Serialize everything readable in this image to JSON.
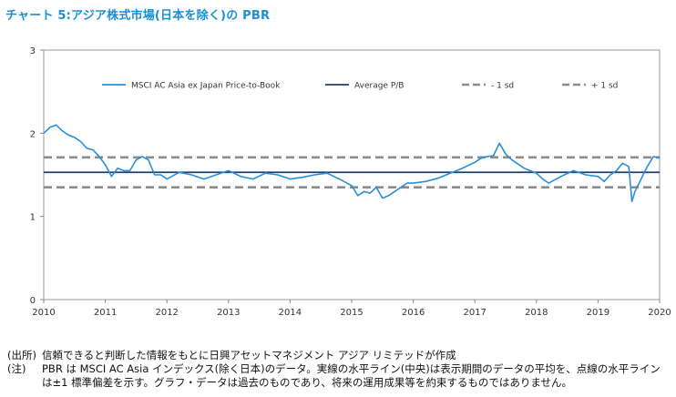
{
  "title": "チャート 5:アジア株式市場(日本を除く)の PBR",
  "chart_data": {
    "type": "line",
    "title": "チャート 5:アジア株式市場(日本を除く)の PBR",
    "xlim": [
      2010,
      2020
    ],
    "ylim": [
      0,
      3
    ],
    "x_ticks": [
      "2010",
      "2011",
      "2012",
      "2013",
      "2014",
      "2015",
      "2016",
      "2017",
      "2018",
      "2019",
      "2020"
    ],
    "y_ticks": [
      "0",
      "1",
      "2",
      "3"
    ],
    "grid": false,
    "legend_position": "top",
    "series": [
      {
        "name": "MSCI AC Asia ex Japan Price-to-Book",
        "color": "#2b8fd6",
        "style": "solid",
        "x": [
          2010.0,
          2010.1,
          2010.2,
          2010.3,
          2010.4,
          2010.5,
          2010.6,
          2010.7,
          2010.8,
          2010.9,
          2011.0,
          2011.1,
          2011.2,
          2011.3,
          2011.4,
          2011.5,
          2011.6,
          2011.7,
          2011.8,
          2011.9,
          2012.0,
          2012.2,
          2012.4,
          2012.6,
          2012.8,
          2013.0,
          2013.2,
          2013.4,
          2013.6,
          2013.8,
          2014.0,
          2014.2,
          2014.4,
          2014.6,
          2014.8,
          2015.0,
          2015.1,
          2015.2,
          2015.3,
          2015.4,
          2015.5,
          2015.6,
          2015.7,
          2015.8,
          2015.9,
          2016.0,
          2016.2,
          2016.4,
          2016.6,
          2016.8,
          2017.0,
          2017.1,
          2017.2,
          2017.3,
          2017.4,
          2017.5,
          2017.6,
          2017.8,
          2018.0,
          2018.1,
          2018.2,
          2018.4,
          2018.6,
          2018.8,
          2019.0,
          2019.1,
          2019.2,
          2019.3,
          2019.4,
          2019.5,
          2019.55,
          2019.6,
          2019.7,
          2019.8,
          2019.9,
          2020.0
        ],
        "y": [
          2.0,
          2.07,
          2.1,
          2.03,
          1.98,
          1.95,
          1.9,
          1.82,
          1.8,
          1.72,
          1.62,
          1.48,
          1.58,
          1.55,
          1.55,
          1.68,
          1.72,
          1.68,
          1.5,
          1.5,
          1.45,
          1.53,
          1.5,
          1.45,
          1.5,
          1.55,
          1.48,
          1.45,
          1.52,
          1.5,
          1.45,
          1.47,
          1.5,
          1.52,
          1.45,
          1.37,
          1.25,
          1.3,
          1.28,
          1.35,
          1.22,
          1.25,
          1.3,
          1.35,
          1.4,
          1.4,
          1.42,
          1.46,
          1.52,
          1.58,
          1.65,
          1.7,
          1.72,
          1.73,
          1.88,
          1.75,
          1.68,
          1.58,
          1.52,
          1.45,
          1.4,
          1.48,
          1.55,
          1.5,
          1.48,
          1.42,
          1.5,
          1.55,
          1.64,
          1.6,
          1.18,
          1.3,
          1.45,
          1.6,
          1.72,
          1.7
        ]
      },
      {
        "name": "Average P/B",
        "color": "#1f3f6e",
        "style": "solid",
        "value": 1.53
      },
      {
        "name": "- 1 sd",
        "color": "#8c8c8c",
        "style": "dashed",
        "value": 1.35
      },
      {
        "name": "+ 1 sd",
        "color": "#8c8c8c",
        "style": "dashed",
        "value": 1.71
      }
    ]
  },
  "notes": {
    "source_tag": "(出所)",
    "source_text": "信頼できると判断した情報をもとに日興アセットマネジメント アジア リミテッドが作成",
    "note_tag": "(注)",
    "note_line1": "PBR は MSCI AC Asia インデックス(除く日本)のデータ。実線の水平ライン(中央)は表示期間のデータの平均を、点線の水平ライン",
    "note_line2": "は±1 標準偏差を示す。グラフ・データは過去のものであり、将来の運用成果等を約束するものではありません。"
  }
}
